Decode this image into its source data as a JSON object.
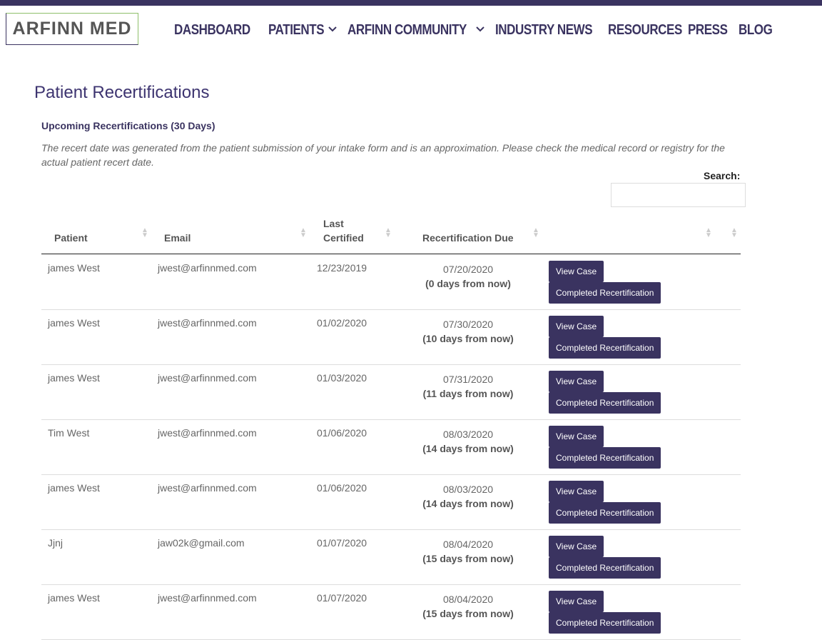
{
  "logo": "ARFINN MED",
  "nav": [
    "DASHBOARD",
    "PATIENTS",
    "ARFINN COMMUNITY",
    "INDUSTRY NEWS",
    "RESOURCES",
    "PRESS",
    "BLOG"
  ],
  "page_title": "Patient Recertifications",
  "section_title": "Upcoming Recertifications (30 Days)",
  "note": "The recert date was generated from the patient submission of your intake form and is an approximation. Please check the medical record or registry for the actual patient recert date.",
  "search_label": "Search:",
  "table": {
    "headers": [
      "Patient",
      "Email",
      "Last Certified",
      "Recertification Due"
    ],
    "buttons": {
      "view": "View Case",
      "complete": "Completed Recertification"
    },
    "rows": [
      {
        "patient": "james West",
        "email": "jwest@arfinnmed.com",
        "last_certified": "12/23/2019",
        "due": "07/20/2020",
        "due_note": "(0 days from now)"
      },
      {
        "patient": "james West",
        "email": "jwest@arfinnmed.com",
        "last_certified": "01/02/2020",
        "due": "07/30/2020",
        "due_note": "(10 days from now)"
      },
      {
        "patient": "james West",
        "email": "jwest@arfinnmed.com",
        "last_certified": "01/03/2020",
        "due": "07/31/2020",
        "due_note": "(11 days from now)"
      },
      {
        "patient": "Tim West",
        "email": "jwest@arfinnmed.com",
        "last_certified": "01/06/2020",
        "due": "08/03/2020",
        "due_note": "(14 days from now)"
      },
      {
        "patient": "james West",
        "email": "jwest@arfinnmed.com",
        "last_certified": "01/06/2020",
        "due": "08/03/2020",
        "due_note": "(14 days from now)"
      },
      {
        "patient": "Jjnj",
        "email": "jaw02k@gmail.com",
        "last_certified": "01/07/2020",
        "due": "08/04/2020",
        "due_note": "(15 days from now)"
      },
      {
        "patient": "james West",
        "email": "jwest@arfinnmed.com",
        "last_certified": "01/07/2020",
        "due": "08/04/2020",
        "due_note": "(15 days from now)"
      }
    ]
  }
}
